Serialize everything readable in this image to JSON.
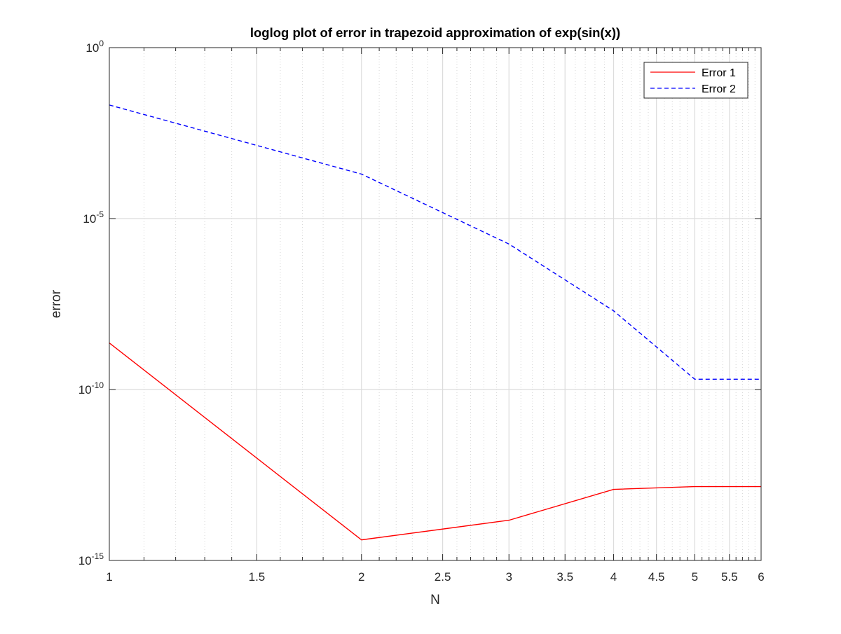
{
  "chart_data": {
    "type": "line",
    "title": "loglog plot of error in trapezoid approximation of exp(sin(x))",
    "xlabel": "N",
    "ylabel": "error",
    "xscale": "log",
    "yscale": "log",
    "xlim": [
      1,
      6
    ],
    "ylim": [
      1e-15,
      1
    ],
    "x_ticks": [
      1,
      1.5,
      2,
      2.5,
      3,
      3.5,
      4,
      4.5,
      5,
      5.5,
      6
    ],
    "x_tick_labels": [
      "1",
      "1.5",
      "2",
      "2.5",
      "3",
      "3.5",
      "4",
      "4.5",
      "5",
      "5.5",
      "6"
    ],
    "y_ticks": [
      1e-15,
      1e-10,
      1e-05,
      1
    ],
    "y_tick_labels": [
      {
        "base": "10",
        "exp": "-15"
      },
      {
        "base": "10",
        "exp": "-10"
      },
      {
        "base": "10",
        "exp": "-5"
      },
      {
        "base": "10",
        "exp": "0"
      }
    ],
    "grid": true,
    "minor_grid": true,
    "legend_location": "top-right",
    "x": [
      1,
      2,
      3,
      4,
      5,
      6
    ],
    "series": [
      {
        "name": "Error 1",
        "color": "#ff0000",
        "style": "solid",
        "values": [
          2.3e-09,
          4e-15,
          1.5e-14,
          1.2e-13,
          1.45e-13,
          1.45e-13
        ]
      },
      {
        "name": "Error 2",
        "color": "#0000ff",
        "style": "dashed",
        "values": [
          0.021,
          0.0002,
          1.8e-06,
          2e-08,
          2e-10,
          2e-10
        ]
      }
    ]
  }
}
